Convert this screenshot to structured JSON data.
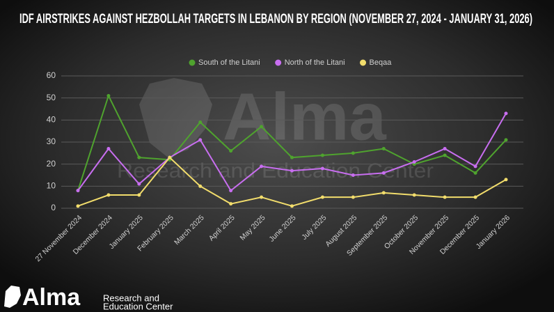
{
  "chart_data": {
    "type": "line",
    "title": "IDF Airstrikes Against Hezbollah Targets in Lebanon by Region  (November 27, 2024 - January 31, 2026)",
    "categories": [
      "27 November 2024",
      "December 2024",
      "January 2025",
      "February 2025",
      "March 2025",
      "April 2025",
      "May 2025",
      "June 2025",
      "July 2025",
      "August 2025",
      "September 2025",
      "October 2025",
      "November 2025",
      "December 2025",
      "January 2026"
    ],
    "series": [
      {
        "name": "South of the Litani",
        "color": "#4fa32e",
        "values": [
          8,
          51,
          23,
          22,
          39,
          26,
          37,
          23,
          24,
          25,
          27,
          20,
          24,
          16,
          31
        ]
      },
      {
        "name": "North of the Litani",
        "color": "#c86ef0",
        "values": [
          8,
          27,
          11,
          23,
          31,
          8,
          19,
          17,
          18,
          15,
          16,
          21,
          27,
          19,
          43
        ]
      },
      {
        "name": "Beqaa",
        "color": "#f2dd6c",
        "values": [
          1,
          6,
          6,
          23,
          10,
          2,
          5,
          1,
          5,
          5,
          7,
          6,
          5,
          5,
          13
        ]
      }
    ],
    "ylim": [
      0,
      60
    ],
    "yticks": [
      0,
      10,
      20,
      30,
      40,
      50,
      60
    ],
    "grid": true,
    "legend": "top"
  },
  "branding": {
    "watermark_name": "Alma",
    "watermark_tagline": "Research and Education Center",
    "logo_name": "Alma",
    "logo_tagline": [
      "Research and",
      "Education Center"
    ]
  }
}
